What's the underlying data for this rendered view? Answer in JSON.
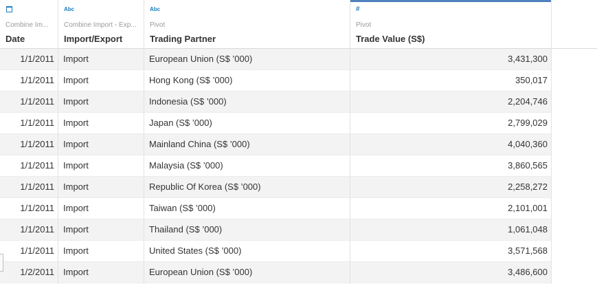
{
  "columns": [
    {
      "type_icon": "calendar-icon",
      "type_glyph": "",
      "source": "Combine Im...",
      "field": "Date"
    },
    {
      "type_icon": "abc-icon",
      "type_glyph": "Abc",
      "source": "Combine Import - Exp...",
      "field": "Import/Export"
    },
    {
      "type_icon": "abc-icon",
      "type_glyph": "Abc",
      "source": "Pivot",
      "field": "Trading Partner"
    },
    {
      "type_icon": "number-icon",
      "type_glyph": "#",
      "source": "Pivot",
      "field": "Trade Value (S$)"
    }
  ],
  "rows": [
    {
      "date": "1/1/2011",
      "import_export": "Import",
      "partner": "European Union (S$ ’000)",
      "value": "3,431,300"
    },
    {
      "date": "1/1/2011",
      "import_export": "Import",
      "partner": "Hong Kong (S$ ’000)",
      "value": "350,017"
    },
    {
      "date": "1/1/2011",
      "import_export": "Import",
      "partner": "Indonesia (S$ ’000)",
      "value": "2,204,746"
    },
    {
      "date": "1/1/2011",
      "import_export": "Import",
      "partner": "Japan (S$ ’000)",
      "value": "2,799,029"
    },
    {
      "date": "1/1/2011",
      "import_export": "Import",
      "partner": "Mainland China (S$ ’000)",
      "value": "4,040,360"
    },
    {
      "date": "1/1/2011",
      "import_export": "Import",
      "partner": "Malaysia (S$ ’000)",
      "value": "3,860,565"
    },
    {
      "date": "1/1/2011",
      "import_export": "Import",
      "partner": "Republic Of Korea (S$ ’000)",
      "value": "2,258,272"
    },
    {
      "date": "1/1/2011",
      "import_export": "Import",
      "partner": "Taiwan (S$ ’000)",
      "value": "2,101,001"
    },
    {
      "date": "1/1/2011",
      "import_export": "Import",
      "partner": "Thailand (S$ ’000)",
      "value": "1,061,048"
    },
    {
      "date": "1/1/2011",
      "import_export": "Import",
      "partner": "United States (S$ ’000)",
      "value": "3,571,568"
    },
    {
      "date": "1/2/2011",
      "import_export": "Import",
      "partner": "European Union (S$ ’000)",
      "value": "3,486,600"
    }
  ],
  "colors": {
    "accent": "#4f81bd",
    "type_icon": "#1b7fbd",
    "alt_row": "#f3f3f3"
  }
}
